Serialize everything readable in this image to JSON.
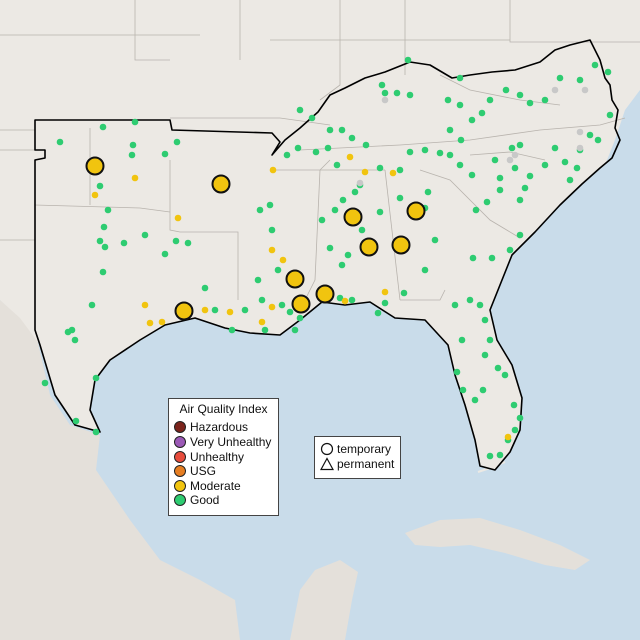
{
  "colors": {
    "ocean": "#c9dcea",
    "land": "#ece9e4",
    "foreign_land": "#e4e0da",
    "borders": "#b8b3ad",
    "region_outline": "#000000",
    "good": "#2ecc71",
    "moderate": "#f1c40f",
    "usg": "#e67e22",
    "unhealthy": "#e74c3c",
    "very_unhealthy": "#9b59b6",
    "hazardous": "#7b241c",
    "no_data": "#c8c8c8"
  },
  "legend": {
    "title": "Air Quality Index",
    "items": [
      {
        "label": "Hazardous",
        "color": "#7b241c"
      },
      {
        "label": "Very Unhealthy",
        "color": "#9b59b6"
      },
      {
        "label": "Unhealthy",
        "color": "#e74c3c"
      },
      {
        "label": "USG",
        "color": "#e67e22"
      },
      {
        "label": "Moderate",
        "color": "#f1c40f"
      },
      {
        "label": "Good",
        "color": "#2ecc71"
      }
    ]
  },
  "shape_legend": {
    "temporary": "temporary",
    "permanent": "permanent"
  }
}
